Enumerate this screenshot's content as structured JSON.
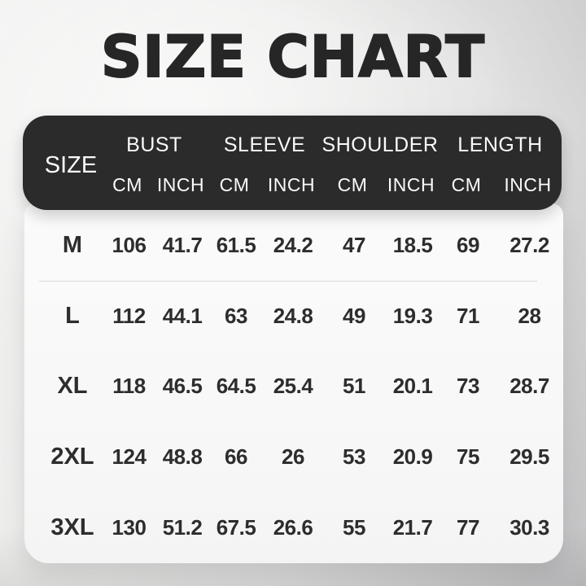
{
  "page": {
    "title": "SIZE CHART"
  },
  "table": {
    "header": {
      "size_label": "SIZE",
      "groups": [
        {
          "label": "BUST",
          "units": [
            "CM",
            "INCH"
          ]
        },
        {
          "label": "SLEEVE",
          "units": [
            "CM",
            "INCH"
          ]
        },
        {
          "label": "SHOULDER",
          "units": [
            "CM",
            "INCH"
          ]
        },
        {
          "label": "LENGTH",
          "units": [
            "CM",
            "INCH"
          ]
        }
      ]
    },
    "rows": [
      {
        "size": "M",
        "values": [
          "106",
          "41.7",
          "61.5",
          "24.2",
          "47",
          "18.5",
          "69",
          "27.2"
        ]
      },
      {
        "size": "L",
        "values": [
          "112",
          "44.1",
          "63",
          "24.8",
          "49",
          "19.3",
          "71",
          "28"
        ]
      },
      {
        "size": "XL",
        "values": [
          "118",
          "46.5",
          "64.5",
          "25.4",
          "51",
          "20.1",
          "73",
          "28.7"
        ]
      },
      {
        "size": "2XL",
        "values": [
          "124",
          "48.8",
          "66",
          "26",
          "53",
          "20.9",
          "75",
          "29.5"
        ]
      },
      {
        "size": "3XL",
        "values": [
          "130",
          "51.2",
          "67.5",
          "26.6",
          "55",
          "21.7",
          "77",
          "30.3"
        ]
      }
    ]
  },
  "chart_data": {
    "type": "table",
    "title": "SIZE CHART",
    "columns": [
      "SIZE",
      "BUST CM",
      "BUST INCH",
      "SLEEVE CM",
      "SLEEVE INCH",
      "SHOULDER CM",
      "SHOULDER INCH",
      "LENGTH CM",
      "LENGTH INCH"
    ],
    "rows": [
      [
        "M",
        106,
        41.7,
        61.5,
        24.2,
        47,
        18.5,
        69,
        27.2
      ],
      [
        "L",
        112,
        44.1,
        63,
        24.8,
        49,
        19.3,
        71,
        28
      ],
      [
        "XL",
        118,
        46.5,
        64.5,
        25.4,
        51,
        20.1,
        73,
        28.7
      ],
      [
        "2XL",
        124,
        48.8,
        66,
        26,
        53,
        20.9,
        75,
        29.5
      ],
      [
        "3XL",
        130,
        51.2,
        67.5,
        26.6,
        55,
        21.7,
        77,
        30.3
      ]
    ]
  },
  "colors": {
    "title": "#262626",
    "header_bg": "#2b2b2b",
    "header_text": "#fafafa",
    "body_bg": "#f8f8f8",
    "data_text": "#2d2d2d",
    "divider": "#d9d9d9",
    "page_bg": "#e9e9e9"
  }
}
